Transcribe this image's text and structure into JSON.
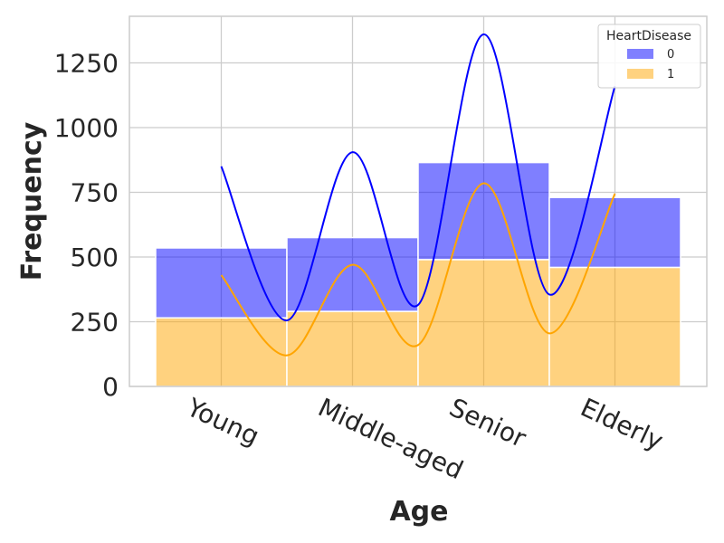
{
  "chart_data": {
    "type": "bar",
    "stacked": true,
    "categories": [
      "Young",
      "Middle-aged",
      "Senior",
      "Elderly"
    ],
    "series": [
      {
        "name": "0",
        "values": [
          270,
          285,
          375,
          270
        ],
        "color": "#0000ff",
        "opacity": 0.5,
        "kde": [
          850,
          255,
          905,
          315,
          1360,
          355,
          1160
        ]
      },
      {
        "name": "1",
        "values": [
          265,
          290,
          490,
          460
        ],
        "color": "#ffa500",
        "opacity": 0.5,
        "kde": [
          430,
          120,
          470,
          160,
          785,
          205,
          745
        ]
      }
    ],
    "xlabel": "Age",
    "ylabel": "Frequency",
    "ylim": [
      0,
      1430
    ],
    "yticks": [
      0,
      250,
      500,
      750,
      1000,
      1250
    ],
    "legend": {
      "title": "HeartDisease",
      "position": "top-right"
    },
    "grid": true
  }
}
